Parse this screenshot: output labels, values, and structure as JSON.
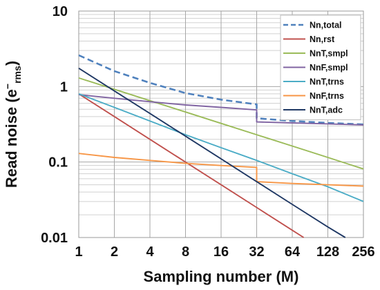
{
  "chart_data": {
    "type": "line",
    "xlabel": "Sampling number (M)",
    "ylabel_main": "Read noise (e",
    "ylabel_sup": "−",
    "ylabel_sub": "rms",
    "ylabel_close": ")",
    "x_scale": "log2",
    "y_scale": "log10",
    "xlim": [
      1,
      256
    ],
    "ylim": [
      0.01,
      10
    ],
    "x_ticks": [
      1,
      2,
      4,
      8,
      16,
      32,
      64,
      128,
      256
    ],
    "x_tick_labels": [
      "1",
      "2",
      "4",
      "8",
      "16",
      "32",
      "64",
      "128",
      "256"
    ],
    "y_ticks": [
      0.01,
      0.1,
      1,
      10
    ],
    "y_tick_labels": [
      "0.01",
      "0.1",
      "1",
      "10"
    ],
    "grid": true,
    "legend_position": "top-right",
    "series": [
      {
        "name": "Nn,total",
        "color": "#4F81BD",
        "dash": true,
        "x": [
          1,
          2,
          4,
          8,
          16,
          32,
          32,
          64,
          128,
          256
        ],
        "y": [
          2.6,
          1.6,
          1.12,
          0.82,
          0.67,
          0.58,
          0.38,
          0.35,
          0.33,
          0.315
        ]
      },
      {
        "name": "Nn,rst",
        "color": "#C0504D",
        "x": [
          1,
          2,
          4,
          8,
          16,
          32,
          64,
          80
        ],
        "y": [
          0.8,
          0.4,
          0.2,
          0.1,
          0.05,
          0.025,
          0.0125,
          0.01
        ]
      },
      {
        "name": "NnT,smpl",
        "color": "#9BBB59",
        "x": [
          1,
          2,
          4,
          8,
          16,
          32,
          64,
          128,
          256
        ],
        "y": [
          1.3,
          0.92,
          0.65,
          0.46,
          0.325,
          0.23,
          0.163,
          0.115,
          0.081
        ]
      },
      {
        "name": "NnF,smpl",
        "color": "#8064A2",
        "x": [
          1,
          2,
          4,
          8,
          16,
          32,
          32,
          64,
          128,
          256
        ],
        "y": [
          0.78,
          0.7,
          0.63,
          0.57,
          0.53,
          0.49,
          0.34,
          0.33,
          0.32,
          0.31
        ]
      },
      {
        "name": "NnT,trns",
        "color": "#4BACC6",
        "x": [
          1,
          2,
          4,
          8,
          16,
          32,
          64,
          128,
          256
        ],
        "y": [
          0.8,
          0.53,
          0.35,
          0.23,
          0.155,
          0.105,
          0.07,
          0.047,
          0.03
        ]
      },
      {
        "name": "NnF,trns",
        "color": "#F79646",
        "x": [
          1,
          2,
          4,
          8,
          16,
          32,
          32,
          64,
          128,
          256
        ],
        "y": [
          0.13,
          0.115,
          0.105,
          0.096,
          0.09,
          0.085,
          0.055,
          0.052,
          0.05,
          0.048
        ]
      },
      {
        "name": "NnT,adc",
        "color": "#1F3864",
        "x": [
          1,
          2,
          4,
          8,
          16,
          32,
          64,
          128,
          180
        ],
        "y": [
          1.75,
          0.875,
          0.44,
          0.22,
          0.11,
          0.055,
          0.0275,
          0.0138,
          0.01
        ]
      }
    ]
  }
}
